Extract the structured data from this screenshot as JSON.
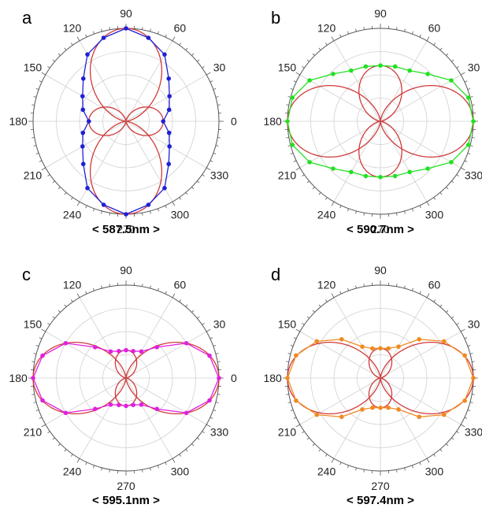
{
  "chart_data": [
    {
      "type": "polar",
      "panel_label": "a",
      "caption": "< 587.5nm >",
      "angle_ticks": [
        "0",
        "30",
        "60",
        "90",
        "120",
        "150",
        "180",
        "210",
        "240",
        "270",
        "300",
        "330"
      ],
      "grid": true,
      "rlim": [
        0,
        1
      ],
      "measured_color": "#1f1fd6",
      "fit_color": "#d03a3a",
      "measured": {
        "theta": [
          0,
          15,
          30,
          45,
          60,
          75,
          90,
          105,
          120,
          135,
          150,
          165,
          180,
          195,
          210,
          225,
          240,
          255,
          270,
          285,
          300,
          315,
          330,
          345
        ],
        "r": [
          0.4,
          0.48,
          0.54,
          0.65,
          0.83,
          0.93,
          1.0,
          0.93,
          0.83,
          0.65,
          0.54,
          0.48,
          0.4,
          0.48,
          0.54,
          0.65,
          0.83,
          0.93,
          1.0,
          0.93,
          0.83,
          0.65,
          0.54,
          0.48
        ]
      },
      "fit": {
        "lobe_angles": [
          90,
          0
        ],
        "amplitudes": [
          1.0,
          0.4
        ]
      }
    },
    {
      "type": "polar",
      "panel_label": "b",
      "caption": "< 590.7nm >",
      "angle_ticks": [
        "0",
        "30",
        "60",
        "90",
        "120",
        "150",
        "180",
        "210",
        "240",
        "270",
        "300",
        "330"
      ],
      "grid": true,
      "rlim": [
        0,
        1
      ],
      "measured_color": "#22e022",
      "fit_color": "#d03a3a",
      "measured": {
        "theta": [
          0,
          15,
          30,
          45,
          60,
          75,
          90,
          105,
          120,
          135,
          150,
          165,
          180,
          195,
          210,
          225,
          240,
          255,
          270,
          285,
          300,
          315,
          330,
          345
        ],
        "r": [
          1.0,
          0.98,
          0.88,
          0.72,
          0.63,
          0.61,
          0.6,
          0.61,
          0.63,
          0.72,
          0.88,
          0.98,
          1.0,
          0.98,
          0.88,
          0.72,
          0.63,
          0.61,
          0.6,
          0.61,
          0.63,
          0.72,
          0.88,
          0.98
        ]
      },
      "fit": {
        "lobe_angles": [
          0,
          90
        ],
        "amplitudes": [
          1.0,
          0.6
        ]
      }
    },
    {
      "type": "polar",
      "panel_label": "c",
      "caption": "< 595.1nm >",
      "angle_ticks": [
        "0",
        "30",
        "60",
        "90",
        "120",
        "150",
        "180",
        "210",
        "240",
        "270",
        "300",
        "330"
      ],
      "grid": true,
      "rlim": [
        0,
        1
      ],
      "measured_color": "#e020e0",
      "fit_color": "#d03a3a",
      "measured": {
        "theta": [
          0,
          15,
          30,
          45,
          60,
          75,
          90,
          105,
          120,
          135,
          150,
          165,
          180,
          195,
          210,
          225,
          240,
          255,
          270,
          285,
          300,
          315,
          330,
          345
        ],
        "r": [
          1.0,
          0.93,
          0.75,
          0.47,
          0.33,
          0.3,
          0.3,
          0.3,
          0.33,
          0.47,
          0.75,
          0.93,
          1.0,
          0.93,
          0.75,
          0.47,
          0.33,
          0.3,
          0.3,
          0.3,
          0.33,
          0.47,
          0.75,
          0.93
        ]
      },
      "fit": {
        "lobe_angles": [
          0,
          90
        ],
        "amplitudes": [
          1.0,
          0.3
        ]
      }
    },
    {
      "type": "polar",
      "panel_label": "d",
      "caption": "< 597.4nm >",
      "angle_ticks": [
        "0",
        "30",
        "60",
        "90",
        "120",
        "150",
        "180",
        "210",
        "240",
        "270",
        "300",
        "330"
      ],
      "grid": true,
      "rlim": [
        0,
        1
      ],
      "measured_color": "#f08a20",
      "fit_color": "#d03a3a",
      "measured": {
        "theta": [
          0,
          15,
          30,
          45,
          60,
          75,
          90,
          105,
          120,
          135,
          150,
          165,
          180,
          195,
          210,
          225,
          240,
          255,
          270,
          285,
          300,
          315,
          330,
          345
        ],
        "r": [
          1.0,
          0.94,
          0.79,
          0.59,
          0.39,
          0.33,
          0.32,
          0.33,
          0.39,
          0.59,
          0.79,
          0.94,
          1.0,
          0.94,
          0.79,
          0.59,
          0.39,
          0.33,
          0.32,
          0.33,
          0.39,
          0.59,
          0.79,
          0.94
        ]
      },
      "fit": {
        "lobe_angles": [
          0,
          90
        ],
        "amplitudes": [
          1.0,
          0.32
        ]
      }
    }
  ]
}
